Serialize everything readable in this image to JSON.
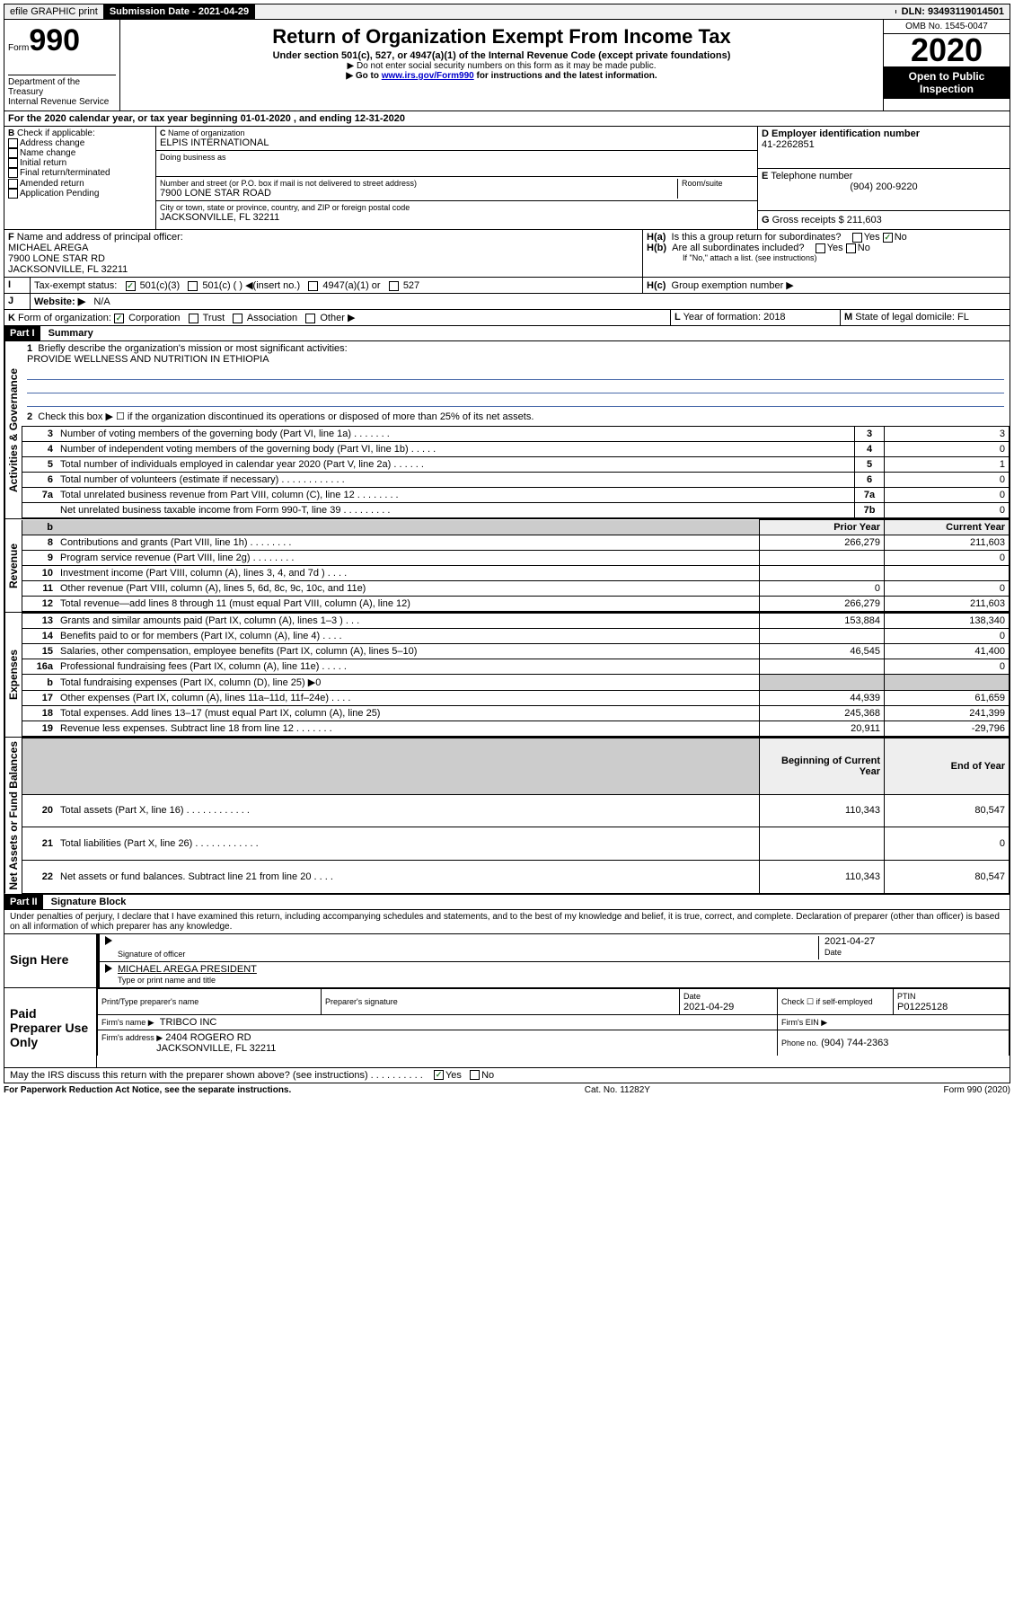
{
  "top": {
    "efile": "efile GRAPHIC print",
    "submission_label": "Submission Date - 2021-04-29",
    "dln": "DLN: 93493119014501"
  },
  "header": {
    "form_prefix": "Form",
    "form_number": "990",
    "title": "Return of Organization Exempt From Income Tax",
    "subtitle": "Under section 501(c), 527, or 4947(a)(1) of the Internal Revenue Code (except private foundations)",
    "note1": "▶ Do not enter social security numbers on this form as it may be made public.",
    "note2_pre": "▶ Go to ",
    "note2_link": "www.irs.gov/Form990",
    "note2_post": " for instructions and the latest information.",
    "dept": "Department of the Treasury",
    "irs": "Internal Revenue Service",
    "omb": "OMB No. 1545-0047",
    "year": "2020",
    "open": "Open to Public Inspection"
  },
  "line_a": "For the 2020 calendar year, or tax year beginning 01-01-2020    , and ending 12-31-2020",
  "section_b": {
    "label": "Check if applicable:",
    "items": [
      "Address change",
      "Name change",
      "Initial return",
      "Final return/terminated",
      "Amended return",
      "Application Pending"
    ]
  },
  "section_c": {
    "label_name": "Name of organization",
    "org_name": "ELPIS INTERNATIONAL",
    "dba_label": "Doing business as",
    "addr_label": "Number and street (or P.O. box if mail is not delivered to street address)",
    "room_label": "Room/suite",
    "addr": "7900 LONE STAR ROAD",
    "city_label": "City or town, state or province, country, and ZIP or foreign postal code",
    "city": "JACKSONVILLE, FL  32211"
  },
  "section_d": {
    "label": "Employer identification number",
    "ein": "41-2262851"
  },
  "section_e": {
    "label": "Telephone number",
    "phone": "(904) 200-9220"
  },
  "section_g": {
    "label": "Gross receipts $",
    "amount": "211,603"
  },
  "section_f": {
    "label": "Name and address of principal officer:",
    "name": "MICHAEL AREGA",
    "addr1": "7900 LONE STAR RD",
    "addr2": "JACKSONVILLE, FL  32211"
  },
  "section_h": {
    "ha": "Is this a group return for subordinates?",
    "hb": "Are all subordinates included?",
    "hb_note": "If \"No,\" attach a list. (see instructions)",
    "hc": "Group exemption number ▶"
  },
  "tax_exempt": {
    "label": "Tax-exempt status:",
    "opt1": "501(c)(3)",
    "opt2": "501(c) (  ) ◀(insert no.)",
    "opt3": "4947(a)(1) or",
    "opt4": "527"
  },
  "website": {
    "label": "Website: ▶",
    "value": "N/A"
  },
  "section_k": {
    "label": "Form of organization:",
    "corp": "Corporation",
    "trust": "Trust",
    "assoc": "Association",
    "other": "Other ▶"
  },
  "section_l": {
    "label": "Year of formation:",
    "value": "2018"
  },
  "section_m": {
    "label": "State of legal domicile:",
    "value": "FL"
  },
  "part1": {
    "header": "Part I",
    "title": "Summary",
    "mission_label": "Briefly describe the organization's mission or most significant activities:",
    "mission": "PROVIDE WELLNESS AND NUTRITION IN ETHIOPIA",
    "line2": "Check this box ▶ ☐  if the organization discontinued its operations or disposed of more than 25% of its net assets."
  },
  "vert_labels": {
    "activities": "Activities & Governance",
    "revenue": "Revenue",
    "expenses": "Expenses",
    "netassets": "Net Assets or Fund Balances"
  },
  "gov_rows": [
    {
      "n": "3",
      "d": "Number of voting members of the governing body (Part VI, line 1a)   .    .    .    .    .    .    .",
      "box": "3",
      "v": "3"
    },
    {
      "n": "4",
      "d": "Number of independent voting members of the governing body (Part VI, line 1b)   .    .    .    .    .",
      "box": "4",
      "v": "0"
    },
    {
      "n": "5",
      "d": "Total number of individuals employed in calendar year 2020 (Part V, line 2a)   .    .    .    .    .    .",
      "box": "5",
      "v": "1"
    },
    {
      "n": "6",
      "d": "Total number of volunteers (estimate if necessary)   .    .    .    .    .    .    .    .    .    .    .    .",
      "box": "6",
      "v": "0"
    },
    {
      "n": "7a",
      "d": "Total unrelated business revenue from Part VIII, column (C), line 12   .    .    .    .    .    .    .    .",
      "box": "7a",
      "v": "0"
    },
    {
      "n": "",
      "d": "Net unrelated business taxable income from Form 990-T, line 39   .    .    .    .    .    .    .    .    .",
      "box": "7b",
      "v": "0"
    }
  ],
  "col_headers": {
    "prior": "Prior Year",
    "current": "Current Year",
    "boy": "Beginning of Current Year",
    "eoy": "End of Year"
  },
  "rev_rows": [
    {
      "n": "8",
      "d": "Contributions and grants (Part VIII, line 1h)   .    .    .    .    .    .    .    .",
      "p": "266,279",
      "c": "211,603"
    },
    {
      "n": "9",
      "d": "Program service revenue (Part VIII, line 2g)   .    .    .    .    .    .    .    .",
      "p": "",
      "c": "0"
    },
    {
      "n": "10",
      "d": "Investment income (Part VIII, column (A), lines 3, 4, and 7d )   .    .    .    .",
      "p": "",
      "c": ""
    },
    {
      "n": "11",
      "d": "Other revenue (Part VIII, column (A), lines 5, 6d, 8c, 9c, 10c, and 11e)",
      "p": "0",
      "c": "0"
    },
    {
      "n": "12",
      "d": "Total revenue—add lines 8 through 11 (must equal Part VIII, column (A), line 12)",
      "p": "266,279",
      "c": "211,603"
    }
  ],
  "exp_rows": [
    {
      "n": "13",
      "d": "Grants and similar amounts paid (Part IX, column (A), lines 1–3 )   .    .    .",
      "p": "153,884",
      "c": "138,340"
    },
    {
      "n": "14",
      "d": "Benefits paid to or for members (Part IX, column (A), line 4)   .    .    .    .",
      "p": "",
      "c": "0"
    },
    {
      "n": "15",
      "d": "Salaries, other compensation, employee benefits (Part IX, column (A), lines 5–10)",
      "p": "46,545",
      "c": "41,400"
    },
    {
      "n": "16a",
      "d": "Professional fundraising fees (Part IX, column (A), line 11e)   .    .    .    .    .",
      "p": "",
      "c": "0"
    },
    {
      "n": "b",
      "d": "Total fundraising expenses (Part IX, column (D), line 25) ▶0",
      "p": "shade",
      "c": "shade"
    },
    {
      "n": "17",
      "d": "Other expenses (Part IX, column (A), lines 11a–11d, 11f–24e)   .    .    .    .",
      "p": "44,939",
      "c": "61,659"
    },
    {
      "n": "18",
      "d": "Total expenses. Add lines 13–17 (must equal Part IX, column (A), line 25)",
      "p": "245,368",
      "c": "241,399"
    },
    {
      "n": "19",
      "d": "Revenue less expenses. Subtract line 18 from line 12   .    .    .    .    .    .    .",
      "p": "20,911",
      "c": "-29,796"
    }
  ],
  "na_rows": [
    {
      "n": "20",
      "d": "Total assets (Part X, line 16)   .    .    .    .    .    .    .    .    .    .    .    .",
      "p": "110,343",
      "c": "80,547"
    },
    {
      "n": "21",
      "d": "Total liabilities (Part X, line 26)   .    .    .    .    .    .    .    .    .    .    .    .",
      "p": "",
      "c": "0"
    },
    {
      "n": "22",
      "d": "Net assets or fund balances. Subtract line 21 from line 20   .    .    .    .",
      "p": "110,343",
      "c": "80,547"
    }
  ],
  "part2": {
    "header": "Part II",
    "title": "Signature Block",
    "declaration": "Under penalties of perjury, I declare that I have examined this return, including accompanying schedules and statements, and to the best of my knowledge and belief, it is true, correct, and complete. Declaration of preparer (other than officer) is based on all information of which preparer has any knowledge."
  },
  "sign": {
    "here": "Sign Here",
    "sig_officer": "Signature of officer",
    "date": "2021-04-27",
    "date_label": "Date",
    "name": "MICHAEL AREGA  PRESIDENT",
    "name_label": "Type or print name and title"
  },
  "paid": {
    "label": "Paid Preparer Use Only",
    "h_name": "Print/Type preparer's name",
    "h_sig": "Preparer's signature",
    "h_date": "Date",
    "h_check": "Check ☐ if self-employed",
    "h_ptin": "PTIN",
    "date": "2021-04-29",
    "ptin": "P01225128",
    "firm_name_label": "Firm's name    ▶",
    "firm_name": "TRIBCO INC",
    "firm_ein_label": "Firm's EIN ▶",
    "firm_addr_label": "Firm's address ▶",
    "firm_addr": "2404 ROGERO RD",
    "firm_city": "JACKSONVILLE, FL  32211",
    "phone_label": "Phone no.",
    "phone": "(904) 744-2363"
  },
  "discuss": "May the IRS discuss this return with the preparer shown above? (see instructions)    .    .    .    .    .    .    .    .    .    .",
  "footer": {
    "pra": "For Paperwork Reduction Act Notice, see the separate instructions.",
    "cat": "Cat. No. 11282Y",
    "form": "Form 990 (2020)"
  }
}
